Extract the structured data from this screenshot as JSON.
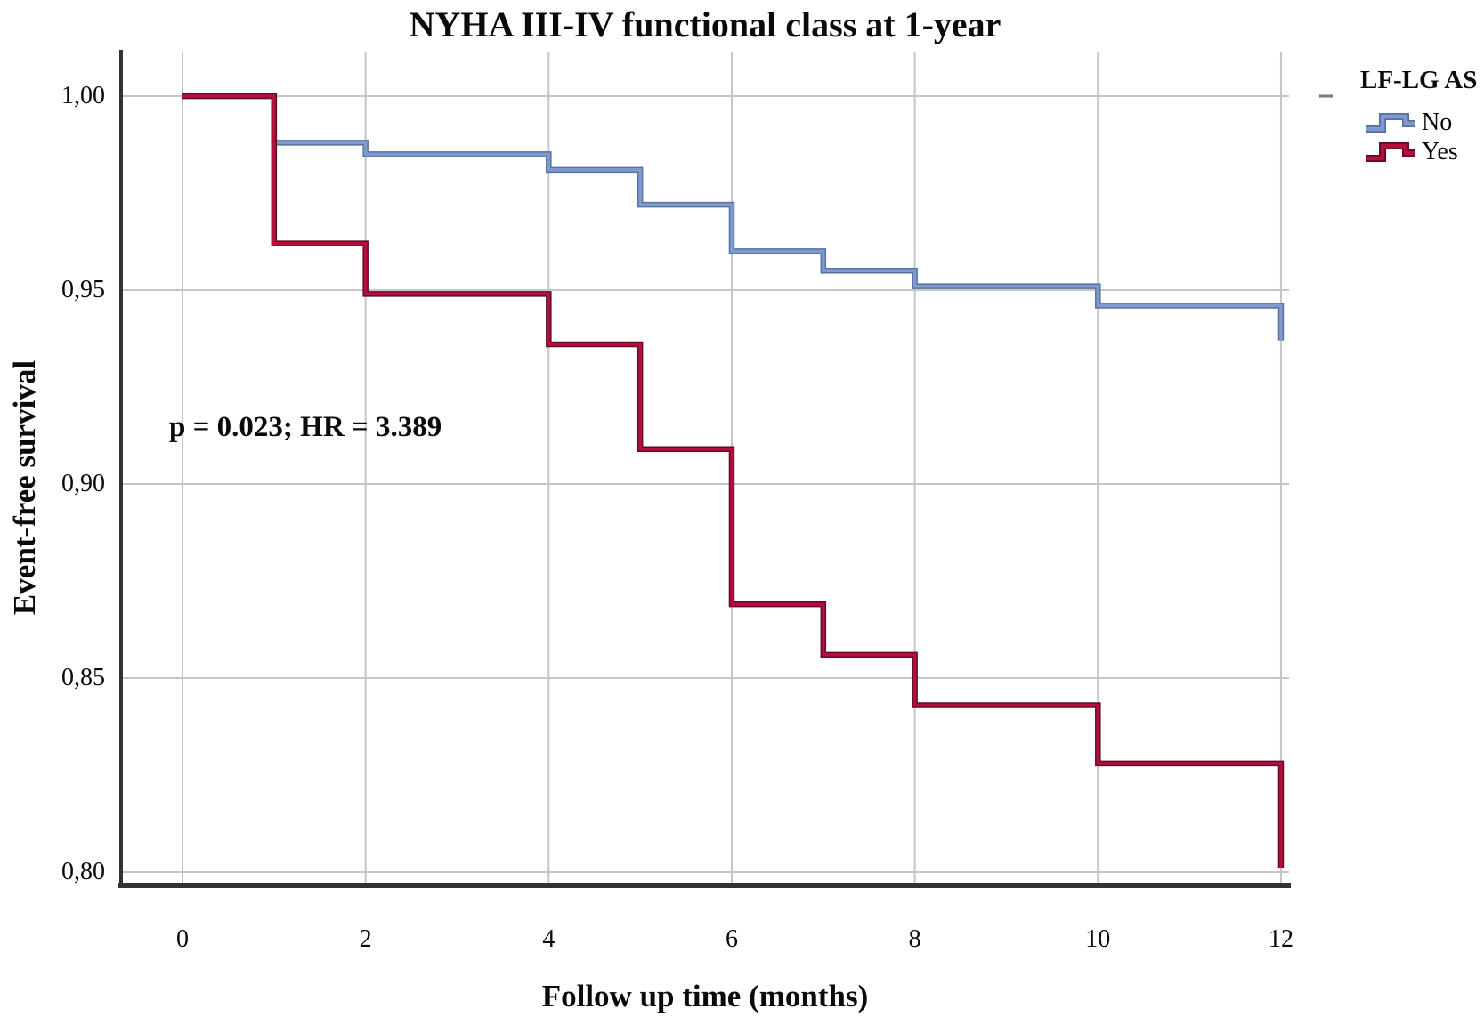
{
  "title": "NYHA III-IV functional class at 1-year",
  "annotation": "p = 0.023; HR = 3.389",
  "legend": {
    "title": "LF-LG AS",
    "position": "top-right"
  },
  "colors": {
    "background": "#ffffff",
    "gridline": "#c5c5c5",
    "axis": "#333333",
    "no_line": "#7e9ad0",
    "no_edge": "#56719f",
    "yes_line": "#b60f3e",
    "yes_edge": "#5c0c24",
    "text": "#0a0a0a"
  },
  "chart_data": {
    "type": "line",
    "subtype": "kaplan-meier-step",
    "title": "NYHA III-IV functional class at 1-year",
    "xlabel": "Follow up time (months)",
    "ylabel": "Event-free survival",
    "xlim": [
      0,
      12
    ],
    "ylim": [
      0.8,
      1.0
    ],
    "grid": true,
    "legend_title": "LF-LG AS",
    "legend_position": "top-right",
    "x_ticks": [
      {
        "label": "0",
        "value": 0
      },
      {
        "label": "2",
        "value": 2
      },
      {
        "label": "4",
        "value": 4
      },
      {
        "label": "6",
        "value": 6
      },
      {
        "label": "8",
        "value": 8
      },
      {
        "label": "10",
        "value": 10
      },
      {
        "label": "12",
        "value": 12
      }
    ],
    "y_ticks": [
      {
        "label": "1,00",
        "value": 1.0
      },
      {
        "label": "0,95",
        "value": 0.95
      },
      {
        "label": "0,90",
        "value": 0.9
      },
      {
        "label": "0,85",
        "value": 0.85
      },
      {
        "label": "0,80",
        "value": 0.8
      }
    ],
    "series": [
      {
        "name": "No",
        "color": "#7e9ad0",
        "edge_color": "#56719f",
        "points": [
          [
            0,
            1.0
          ],
          [
            1,
            0.988
          ],
          [
            2,
            0.985
          ],
          [
            4,
            0.981
          ],
          [
            5,
            0.972
          ],
          [
            6,
            0.96
          ],
          [
            7,
            0.955
          ],
          [
            8,
            0.951
          ],
          [
            10,
            0.946
          ],
          [
            12,
            0.937
          ]
        ]
      },
      {
        "name": "Yes",
        "color": "#b60f3e",
        "edge_color": "#5c0c24",
        "points": [
          [
            0,
            1.0
          ],
          [
            1,
            0.962
          ],
          [
            2,
            0.949
          ],
          [
            4,
            0.936
          ],
          [
            5,
            0.909
          ],
          [
            6,
            0.869
          ],
          [
            7,
            0.856
          ],
          [
            8,
            0.843
          ],
          [
            10,
            0.828
          ],
          [
            12,
            0.801
          ]
        ]
      }
    ]
  }
}
